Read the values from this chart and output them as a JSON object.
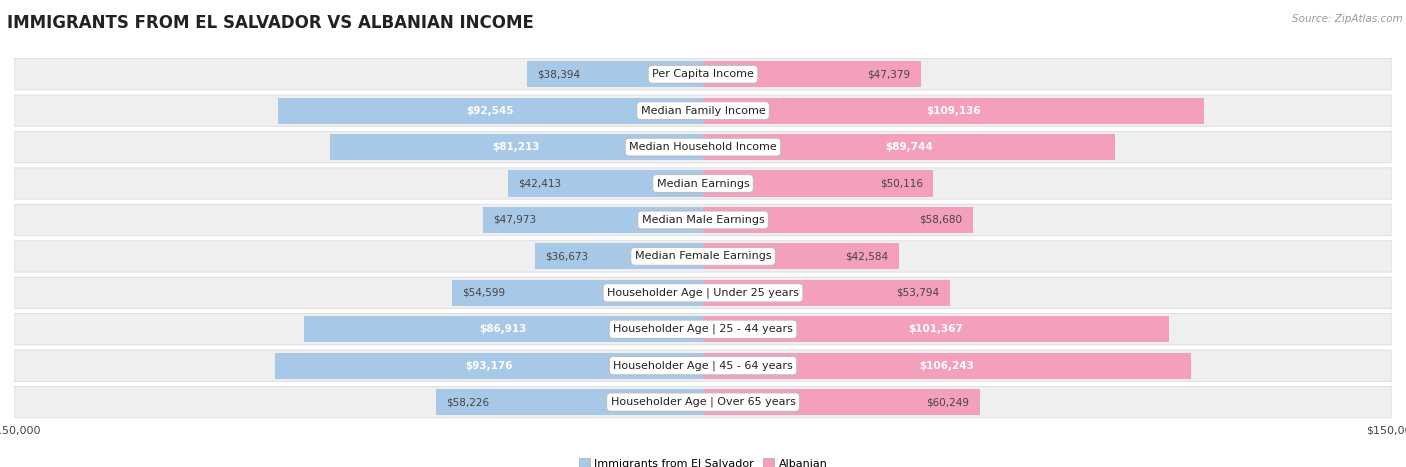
{
  "title": "IMMIGRANTS FROM EL SALVADOR VS ALBANIAN INCOME",
  "source": "Source: ZipAtlas.com",
  "categories": [
    "Per Capita Income",
    "Median Family Income",
    "Median Household Income",
    "Median Earnings",
    "Median Male Earnings",
    "Median Female Earnings",
    "Householder Age | Under 25 years",
    "Householder Age | 25 - 44 years",
    "Householder Age | 45 - 64 years",
    "Householder Age | Over 65 years"
  ],
  "el_salvador": [
    38394,
    92545,
    81213,
    42413,
    47973,
    36673,
    54599,
    86913,
    93176,
    58226
  ],
  "albanian": [
    47379,
    109136,
    89744,
    50116,
    58680,
    42584,
    53794,
    101367,
    106243,
    60249
  ],
  "el_salvador_labels": [
    "$38,394",
    "$92,545",
    "$81,213",
    "$42,413",
    "$47,973",
    "$36,673",
    "$54,599",
    "$86,913",
    "$93,176",
    "$58,226"
  ],
  "albanian_labels": [
    "$47,379",
    "$109,136",
    "$89,744",
    "$50,116",
    "$58,680",
    "$42,584",
    "$53,794",
    "$101,367",
    "$106,243",
    "$60,249"
  ],
  "es_label_inside": [
    false,
    true,
    true,
    false,
    false,
    false,
    false,
    true,
    true,
    false
  ],
  "alb_label_inside": [
    false,
    true,
    true,
    false,
    false,
    false,
    false,
    true,
    true,
    false
  ],
  "color_es": "#a8c8e8",
  "color_alb": "#f4a0bc",
  "row_bg_even": "#efefef",
  "row_bg_odd": "#efefef",
  "max_val": 150000,
  "bg_color": "#ffffff",
  "title_fontsize": 12,
  "cat_fontsize": 8,
  "value_fontsize": 7.5
}
